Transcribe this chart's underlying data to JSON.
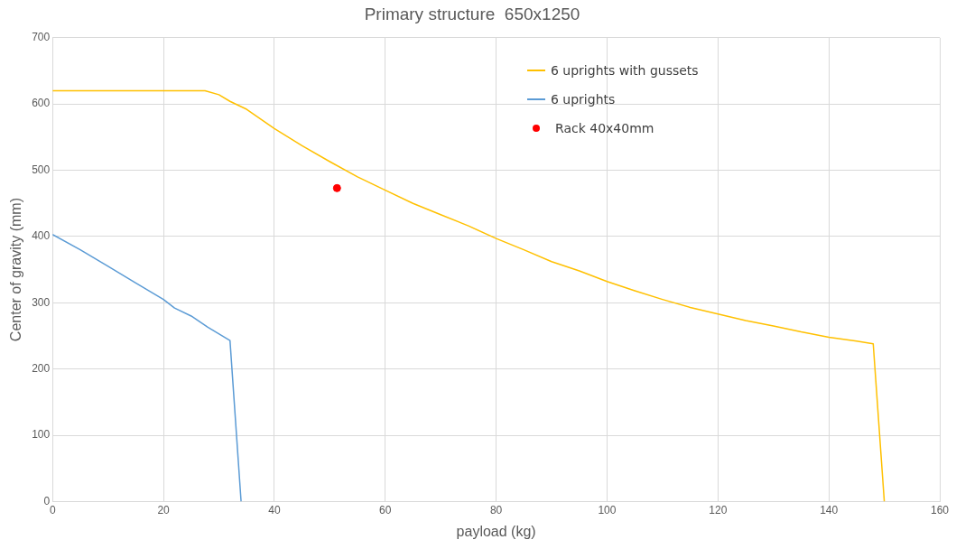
{
  "chart_data": {
    "type": "line",
    "title": "Primary structure  650x1250",
    "xlabel": "payload (kg)",
    "ylabel": "Center of gravity (mm)",
    "xlim": [
      0,
      160
    ],
    "xticks": [
      0,
      20,
      40,
      60,
      80,
      100,
      120,
      140,
      160
    ],
    "ylim": [
      0,
      700
    ],
    "yticks": [
      0,
      100,
      200,
      300,
      400,
      500,
      600,
      700
    ],
    "grid": true,
    "legend": "top right",
    "marker": "none",
    "series": [
      {
        "name": "6 uprights with gussets",
        "color": "#ffc000",
        "x": [
          0,
          27.5,
          30,
          32,
          35,
          40,
          45,
          50,
          55,
          60,
          65,
          70,
          75,
          80,
          85,
          90,
          95,
          100,
          105,
          110,
          115,
          120,
          125,
          130,
          135,
          140,
          145,
          148,
          150
        ],
        "values": [
          620,
          620,
          614,
          604,
          592,
          563,
          537,
          513,
          490,
          470,
          450,
          433,
          416,
          397,
          380,
          362,
          348,
          332,
          318,
          305,
          293,
          283,
          273,
          265,
          256,
          248,
          242,
          238,
          0
        ]
      },
      {
        "name": "6 uprights",
        "color": "#5b9bd5",
        "x": [
          0,
          5,
          10,
          15,
          20,
          22,
          25,
          28,
          32,
          34
        ],
        "values": [
          403,
          380,
          355,
          330,
          305,
          292,
          280,
          263,
          243,
          0
        ]
      },
      {
        "name": "Rack 40x40mm",
        "type": "scatter",
        "marker": "circle",
        "color": "#ff0000",
        "x": [
          51.3
        ],
        "values": [
          473
        ]
      }
    ]
  }
}
